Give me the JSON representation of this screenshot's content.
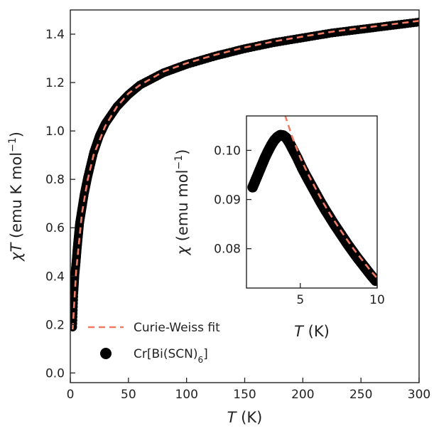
{
  "chart_data": [
    {
      "id": "main",
      "type": "scatter",
      "xlabel_symbol": "T",
      "xlabel_unit": " (K)",
      "ylabel_symbol": "χT",
      "ylabel_unit": " (emu K mol",
      "ylabel_unit_sup": "−1",
      "ylabel_unit_end": ")",
      "xlim": [
        0,
        300
      ],
      "ylim": [
        -0.04,
        1.5
      ],
      "xticks": [
        0,
        50,
        100,
        150,
        200,
        250,
        300
      ],
      "yticks": [
        0.0,
        0.2,
        0.4,
        0.6,
        0.8,
        1.0,
        1.2,
        1.4
      ],
      "ytick_labels": [
        "0.0",
        "0.2",
        "0.4",
        "0.6",
        "0.8",
        "1.0",
        "1.2",
        "1.4"
      ],
      "xtick_labels": [
        "0",
        "50",
        "100",
        "150",
        "200",
        "250",
        "300"
      ],
      "grid": false,
      "legend_position": "bottom-left",
      "series": [
        {
          "name": "Curie-Weiss fit",
          "style": "dashed-line",
          "color": "#f07a62",
          "x": [
            2,
            5,
            10,
            15,
            20,
            30,
            40,
            50,
            60,
            80,
            100,
            125,
            150,
            175,
            200,
            225,
            250,
            275,
            300
          ],
          "y": [
            0.18,
            0.42,
            0.66,
            0.8,
            0.9,
            1.02,
            1.1,
            1.155,
            1.19,
            1.245,
            1.28,
            1.315,
            1.345,
            1.37,
            1.39,
            1.41,
            1.425,
            1.44,
            1.455
          ]
        },
        {
          "name_prefix": "Cr[Bi(SCN)",
          "name_sub": "6",
          "name_suffix": "]",
          "style": "markers",
          "color": "#000000",
          "x": [
            2,
            3,
            4,
            5,
            6,
            7,
            8,
            10,
            12,
            15,
            20,
            25,
            30,
            40,
            50,
            60,
            80,
            100,
            125,
            150,
            175,
            200,
            225,
            250,
            275,
            300
          ],
          "y": [
            0.19,
            0.33,
            0.41,
            0.46,
            0.52,
            0.57,
            0.62,
            0.68,
            0.74,
            0.81,
            0.91,
            0.98,
            1.03,
            1.1,
            1.15,
            1.19,
            1.24,
            1.275,
            1.31,
            1.34,
            1.365,
            1.385,
            1.405,
            1.42,
            1.435,
            1.45
          ]
        }
      ]
    },
    {
      "id": "inset",
      "type": "scatter",
      "xlabel_symbol": "T",
      "xlabel_unit": " (K)",
      "ylabel_symbol": "χ",
      "ylabel_unit": " (emu mol",
      "ylabel_unit_sup": "−1",
      "ylabel_unit_end": ")",
      "xlim": [
        1.5,
        10
      ],
      "ylim": [
        0.072,
        0.107
      ],
      "xticks": [
        5,
        10
      ],
      "xtick_labels": [
        "5",
        "10"
      ],
      "yticks": [
        0.08,
        0.09,
        0.1
      ],
      "ytick_labels": [
        "0.08",
        "0.09",
        "0.10"
      ],
      "grid": false,
      "series": [
        {
          "name": "Curie-Weiss fit",
          "style": "dashed-line",
          "color": "#f07a62",
          "x": [
            4.0,
            4.5,
            5,
            5.5,
            6,
            6.5,
            7,
            7.5,
            8,
            8.5,
            9,
            9.5,
            10
          ],
          "y": [
            0.1072,
            0.1025,
            0.0985,
            0.0952,
            0.0922,
            0.0893,
            0.0867,
            0.0843,
            0.082,
            0.0798,
            0.0778,
            0.0758,
            0.074
          ]
        },
        {
          "name": "Cr[Bi(SCN)6]",
          "style": "markers",
          "color": "#000000",
          "x": [
            1.9,
            2.1,
            2.3,
            2.5,
            2.7,
            2.9,
            3.1,
            3.3,
            3.5,
            3.7,
            3.9,
            4.1,
            4.3,
            4.5,
            4.8,
            5.1,
            5.4,
            5.7,
            6.0,
            6.3,
            6.6,
            6.9,
            7.2,
            7.5,
            7.8,
            8.1,
            8.4,
            8.7,
            9.0,
            9.3,
            9.6,
            9.9
          ],
          "y": [
            0.0925,
            0.094,
            0.0955,
            0.097,
            0.0985,
            0.0998,
            0.101,
            0.102,
            0.1027,
            0.1031,
            0.103,
            0.1025,
            0.1015,
            0.1003,
            0.0985,
            0.0965,
            0.0947,
            0.093,
            0.0913,
            0.0896,
            0.088,
            0.0865,
            0.085,
            0.0836,
            0.0822,
            0.0808,
            0.0795,
            0.0782,
            0.077,
            0.0758,
            0.0746,
            0.0735
          ]
        }
      ]
    }
  ]
}
